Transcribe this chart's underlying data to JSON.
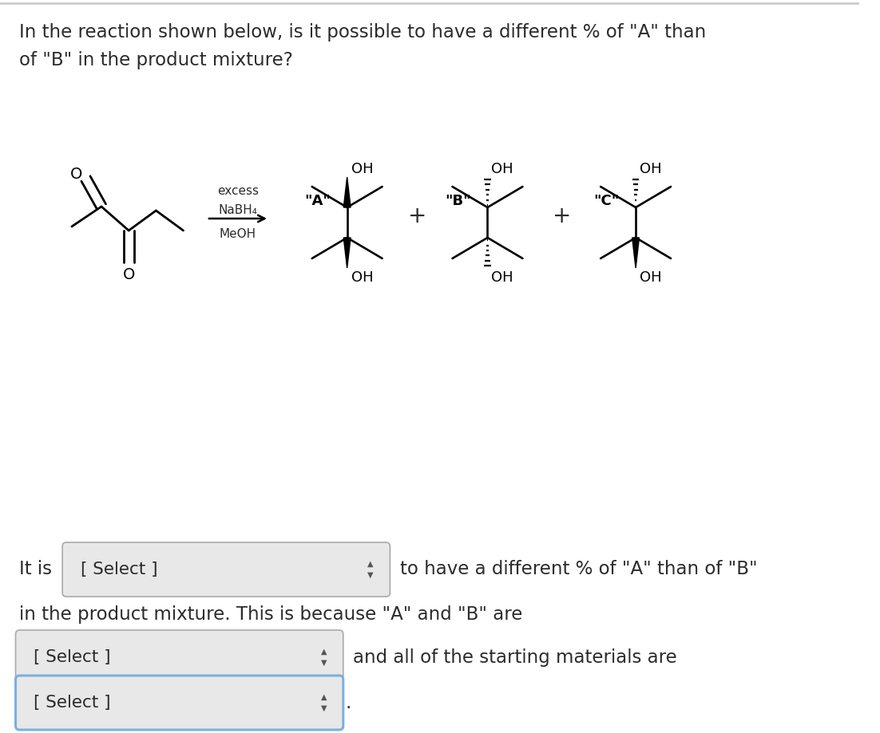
{
  "title_line1": "In the reaction shown below, is it possible to have a different % of \"A\" than",
  "title_line2": "of \"B\" in the product mixture?",
  "title_fontsize": 16.5,
  "body_fontsize": 16.5,
  "text_color": "#2c2c2c",
  "reaction_text_excess": "excess",
  "reaction_text_nabh4": "NaBH₄",
  "reaction_text_meoh": "MeOH",
  "select_box1_text": "[ Select ]",
  "select_box2_text": "[ Select ]",
  "select_box3_text": "[ Select ]",
  "inline_text1": "It is",
  "inline_text2": "to have a different % of \"A\" than of \"B\"",
  "line2_text": "in the product mixture. This is because \"A\" and \"B\" are",
  "inline_text3": "and all of the starting materials are",
  "period": ".",
  "select_box_bg": "#e8e8e8",
  "select_box_border": "#aaaaaa",
  "select_box3_border": "#7ab0e0",
  "top_border_color": "#cccccc"
}
